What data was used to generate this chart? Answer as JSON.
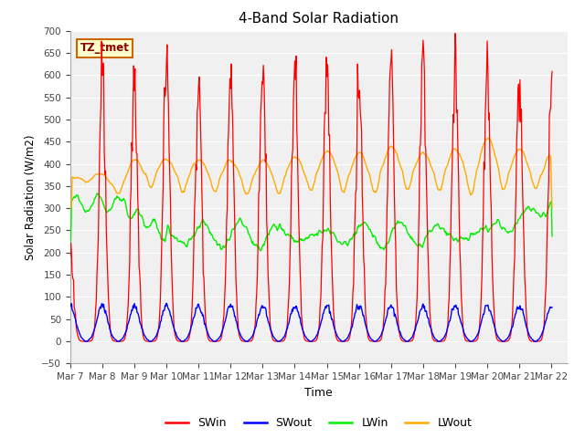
{
  "title": "4-Band Solar Radiation",
  "xlabel": "Time",
  "ylabel": "Solar Radiation (W/m2)",
  "ylim": [
    -50,
    700
  ],
  "yticks": [
    -50,
    0,
    50,
    100,
    150,
    200,
    250,
    300,
    350,
    400,
    450,
    500,
    550,
    600,
    650,
    700
  ],
  "xlim_days": [
    0,
    15.5
  ],
  "colors": {
    "SWin": "#ff0000",
    "SWout": "#0000ff",
    "LWin": "#00ee00",
    "LWout": "#ffaa00"
  },
  "annotation_text": "TZ_tmet",
  "annotation_bg": "#ffffcc",
  "annotation_border": "#cc6600",
  "fig_bg": "#ffffff",
  "plot_bg": "#f0f0f0",
  "legend_entries": [
    "SWin",
    "SWout",
    "LWin",
    "LWout"
  ],
  "tick_labels": [
    "Mar 7",
    "Mar 8",
    "Mar 9",
    "Mar 10",
    "Mar 11",
    "Mar 12",
    "Mar 13",
    "Mar 14",
    "Mar 15",
    "Mar 16",
    "Mar 17",
    "Mar 18",
    "Mar 19",
    "Mar 20",
    "Mar 21",
    "Mar 22"
  ],
  "tick_positions": [
    0,
    1,
    2,
    3,
    4,
    5,
    6,
    7,
    8,
    9,
    10,
    11,
    12,
    13,
    14,
    15
  ]
}
